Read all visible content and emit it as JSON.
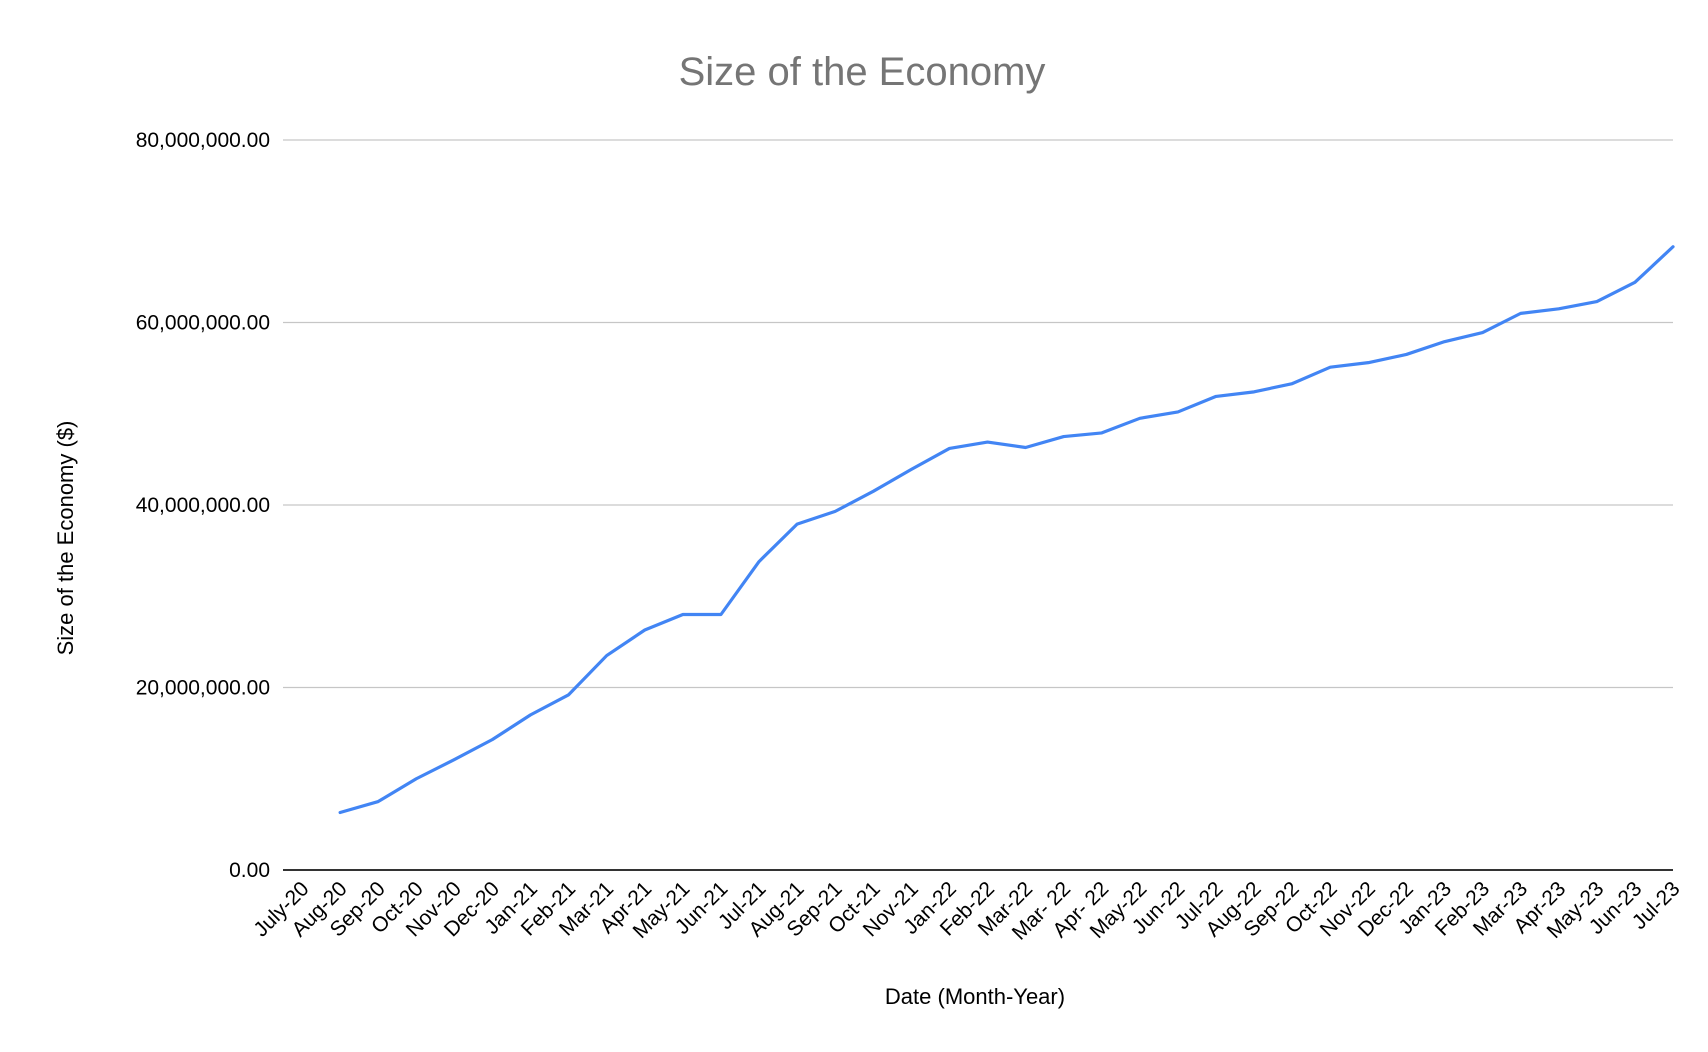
{
  "chart_data": {
    "type": "line",
    "title": "Size of the Economy",
    "xlabel": "Date (Month-Year)",
    "ylabel": "Size of the Economy ($)",
    "ylim": [
      0,
      80000000
    ],
    "yticks": [
      "0.00",
      "20,000,000.00",
      "40,000,000.00",
      "60,000,000.00",
      "80,000,000.00"
    ],
    "ytick_values": [
      0,
      20000000,
      40000000,
      60000000,
      80000000
    ],
    "grid": true,
    "legend": "none",
    "categories": [
      "July-20",
      "Aug-20",
      "Sep-20",
      "Oct-20",
      "Nov-20",
      "Dec-20",
      "Jan-21",
      "Feb-21",
      "Mar-21",
      "Apr-21",
      "May-21",
      "Jun-21",
      "Jul-21",
      "Aug-21",
      "Sep-21",
      "Oct-21",
      "Nov-21",
      "Jan-22",
      "Feb-22",
      "Mar-22",
      "Mar- 22",
      "Apr- 22",
      "May-22",
      "Jun-22",
      "Jul-22",
      "Aug-22",
      "Sep-22",
      "Oct-22",
      "Nov-22",
      "Dec-22",
      "Jan-23",
      "Feb-23",
      "Mar-23",
      "Apr-23",
      "May-23",
      "Jun-23",
      "Jul-23"
    ],
    "series": [
      {
        "color": "#4285f4",
        "values": [
          null,
          6300000,
          7500000,
          10000000,
          12100000,
          14300000,
          17000000,
          19200000,
          23500000,
          26300000,
          28000000,
          28000000,
          33800000,
          37900000,
          39300000,
          41500000,
          43900000,
          46200000,
          46900000,
          46300000,
          47500000,
          47900000,
          49500000,
          50200000,
          51900000,
          52400000,
          53300000,
          55100000,
          55600000,
          56500000,
          57900000,
          58900000,
          61000000,
          61500000,
          62300000,
          64400000,
          68300000
        ]
      }
    ]
  }
}
